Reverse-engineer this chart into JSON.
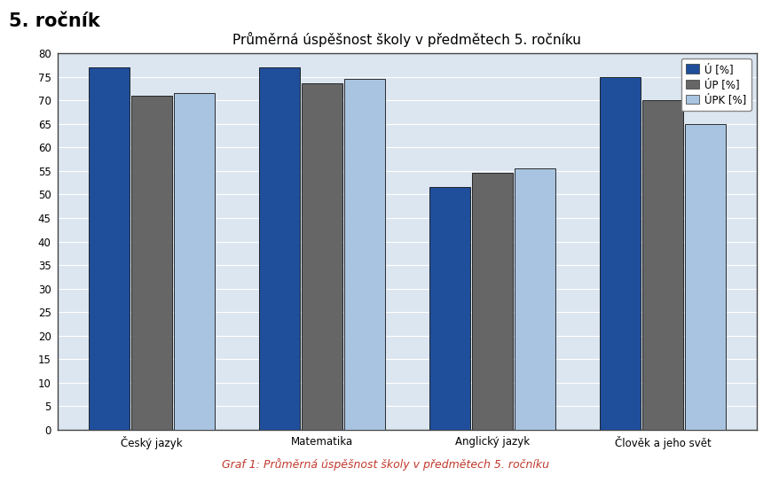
{
  "title": "Průměrná úspěšnost školy v předmětech 5. ročníku",
  "suptitle": "5. ročník",
  "caption": "Graf 1: Průměrná úspěšnost školy v předmětech 5. ročníku",
  "categories": [
    "Český jazyk",
    "Matematika",
    "Anglický jazyk",
    "Člověk a jeho svět"
  ],
  "series": {
    "Ú [%]": [
      77.0,
      77.0,
      51.5,
      75.0
    ],
    "ÚP [%]": [
      71.0,
      73.5,
      54.5,
      70.0
    ],
    "ÚPK [%]": [
      71.5,
      74.5,
      55.5,
      65.0
    ]
  },
  "colors": {
    "Ú [%]": "#1F4E9B",
    "ÚP [%]": "#666666",
    "ÚPK [%]": "#A8C4E0"
  },
  "ylim": [
    0,
    80
  ],
  "yticks": [
    0,
    5,
    10,
    15,
    20,
    25,
    30,
    35,
    40,
    45,
    50,
    55,
    60,
    65,
    70,
    75,
    80
  ],
  "bar_width": 0.25,
  "page_bg_color": "#FFFFFF",
  "chart_box_bg": "#DCDCDC",
  "plot_bg_color": "#DCE6F1",
  "grid_color": "#FFFFFF",
  "title_fontsize": 11,
  "axis_fontsize": 8.5,
  "legend_fontsize": 8.5,
  "caption_fontsize": 9,
  "suptitle_fontsize": 15,
  "caption_color": "#C0392B"
}
